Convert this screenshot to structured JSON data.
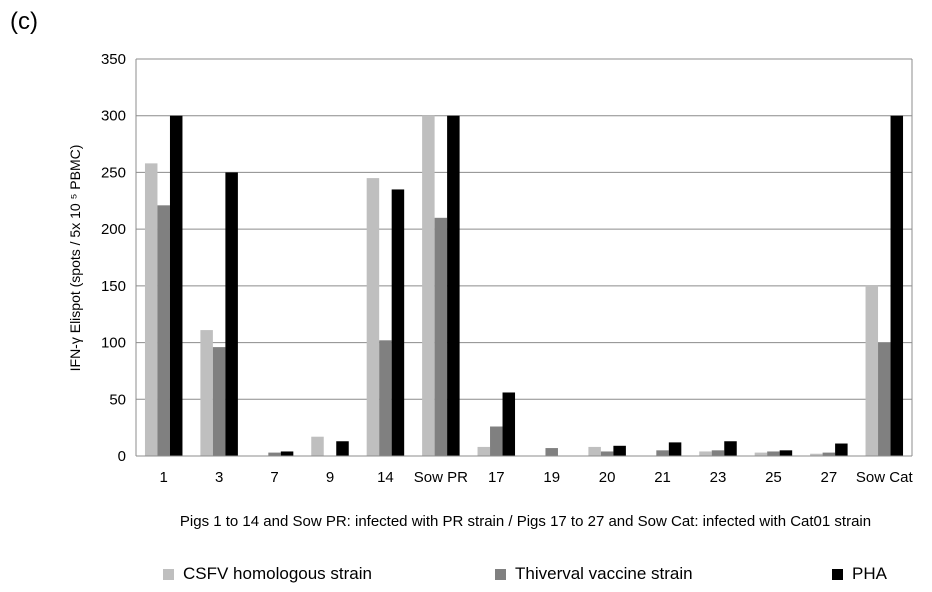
{
  "panel_label": "(c)",
  "chart_data": {
    "type": "bar",
    "categories": [
      "1",
      "3",
      "7",
      "9",
      "14",
      "Sow PR",
      "17",
      "19",
      "20",
      "21",
      "23",
      "25",
      "27",
      "Sow Cat"
    ],
    "series": [
      {
        "name": "CSFV homologous strain",
        "color": "#bfbfbf",
        "values": [
          258,
          111,
          0,
          17,
          245,
          300,
          8,
          0,
          8,
          0,
          4,
          3,
          2,
          150
        ]
      },
      {
        "name": "Thiverval vaccine strain",
        "color": "#808080",
        "values": [
          221,
          96,
          3,
          0,
          102,
          210,
          26,
          7,
          4,
          5,
          5,
          4,
          3,
          100
        ]
      },
      {
        "name": "PHA",
        "color": "#000000",
        "values": [
          300,
          250,
          4,
          13,
          235,
          300,
          56,
          0,
          9,
          12,
          13,
          5,
          11,
          300
        ]
      }
    ],
    "ylabel": "IFN-γ Elispot (spots / 5x 10 ⁵ PBMC)",
    "xlabel": "Pigs 1 to 14 and Sow PR: infected with PR strain / Pigs 17 to 27 and Sow Cat: infected with Cat01 strain",
    "ylim": [
      0,
      350
    ],
    "yticks": [
      0,
      50,
      100,
      150,
      200,
      250,
      300,
      350
    ],
    "grid": true,
    "legend_position": "bottom"
  }
}
